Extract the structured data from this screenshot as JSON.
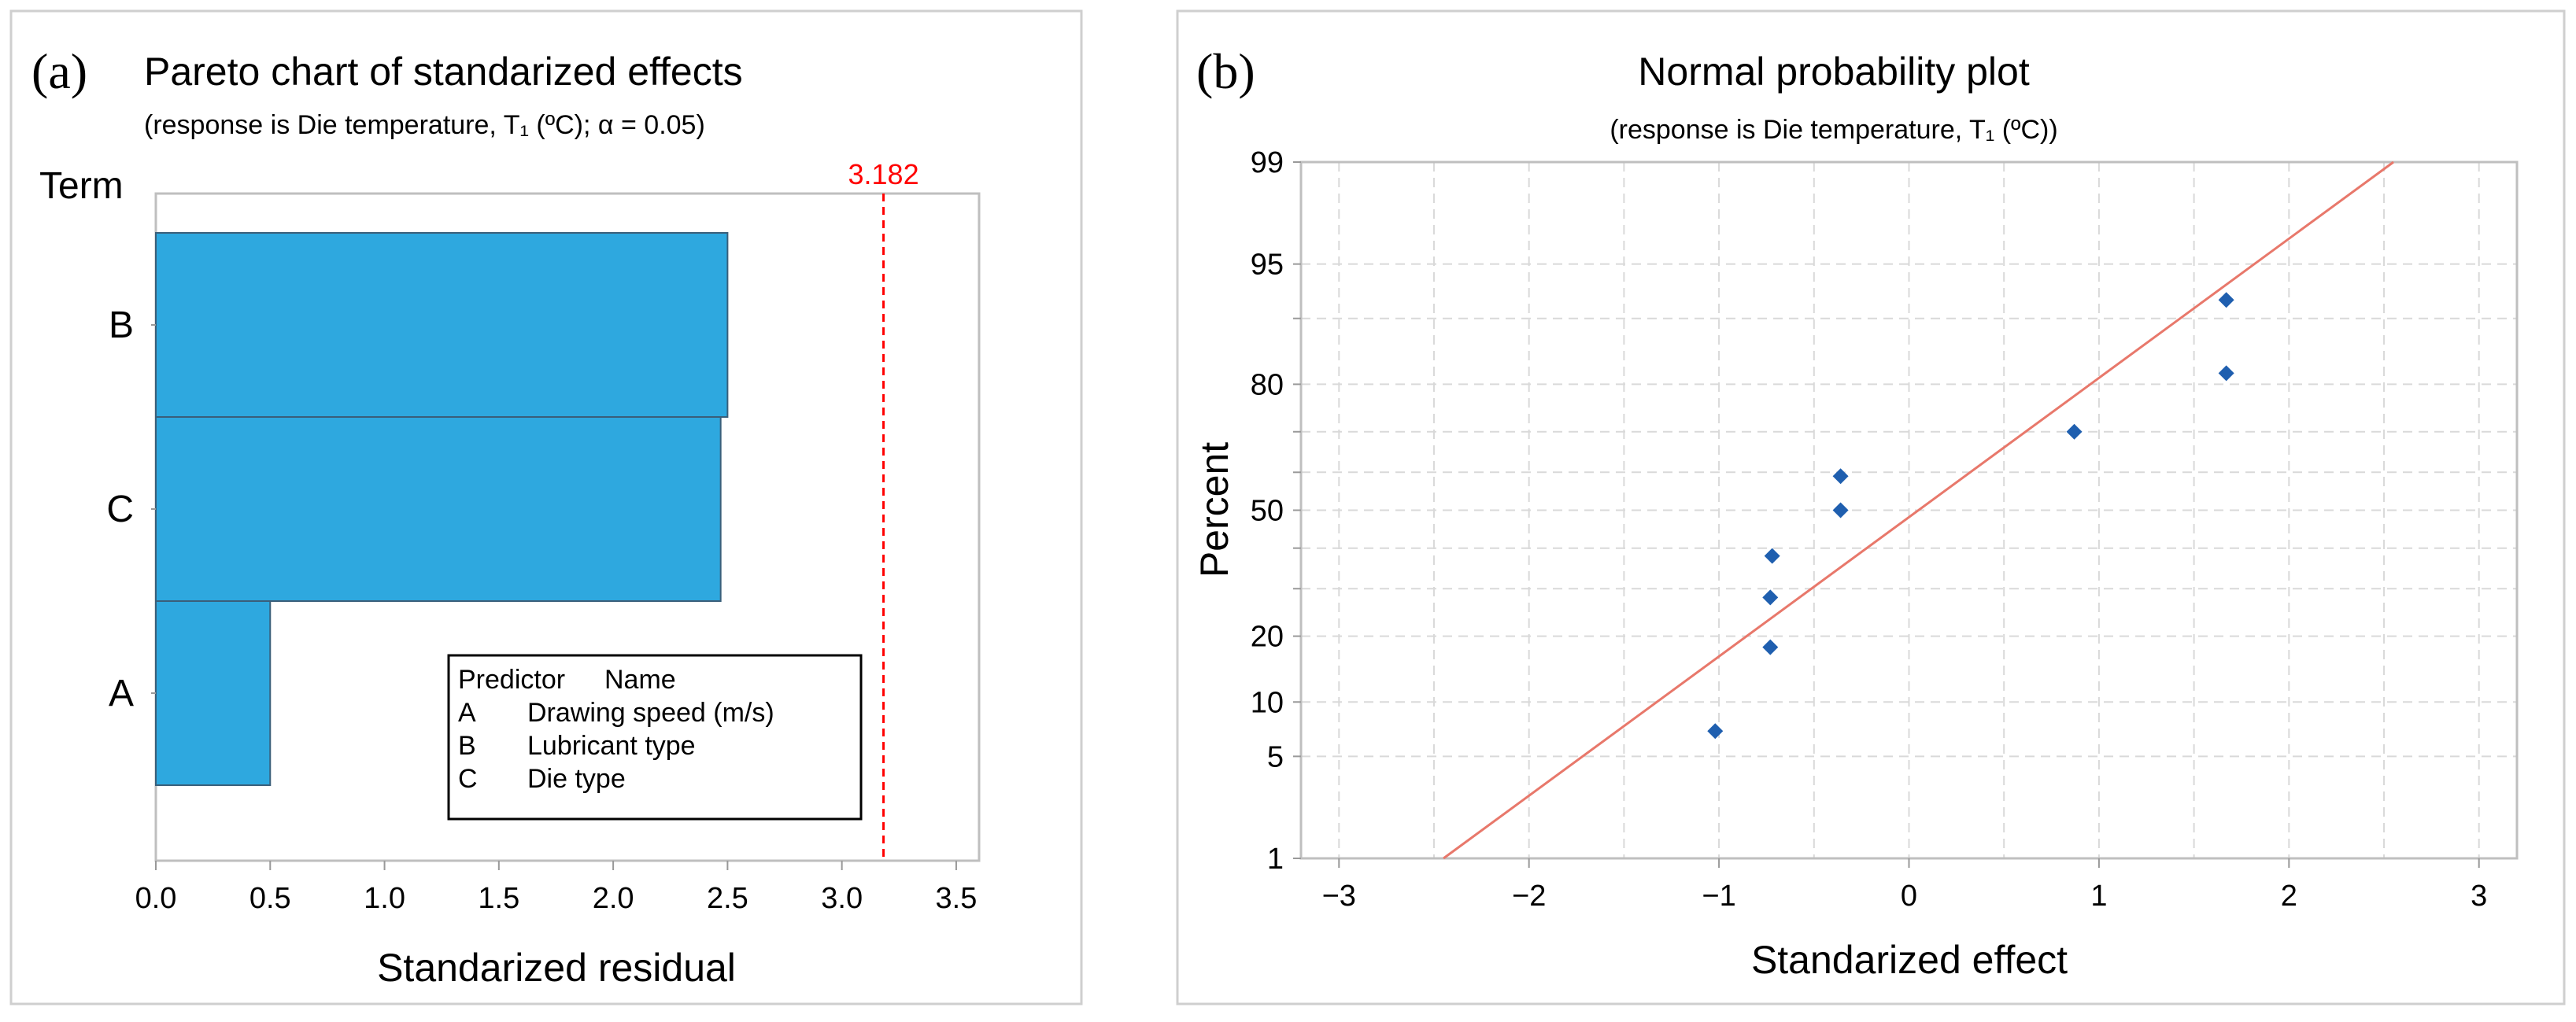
{
  "chart_data": [
    {
      "panel_label": "(a)",
      "type": "bar",
      "orientation": "horizontal",
      "title": "Pareto chart of standarized effects",
      "subtitle": "(response is Die temperature, T₁ (ºC); α = 0.05)",
      "xlabel": "Standarized residual",
      "ylabel": "Term",
      "xlim": [
        0,
        3.6
      ],
      "xticks": [
        0.0,
        0.5,
        1.0,
        1.5,
        2.0,
        2.5,
        3.0,
        3.5
      ],
      "xtick_labels": [
        "0.0",
        "0.5",
        "1.0",
        "1.5",
        "2.0",
        "2.5",
        "3.0",
        "3.5"
      ],
      "categories": [
        "B",
        "C",
        "A"
      ],
      "values": [
        2.5,
        2.47,
        0.5
      ],
      "bar_color": "#2EA8DF",
      "bar_edge_color": "#3A5F7A",
      "reference_line": {
        "value": 3.182,
        "label": "3.182",
        "color": "#FF0000",
        "style": "dashed"
      },
      "legend": {
        "placement": "bottom-right",
        "header": [
          "Predictor",
          "Name"
        ],
        "rows": [
          {
            "key": "A",
            "name": "Drawing speed (m/s)"
          },
          {
            "key": "B",
            "name": "Lubricant type"
          },
          {
            "key": "C",
            "name": "Die type"
          }
        ]
      },
      "grid": false
    },
    {
      "panel_label": "(b)",
      "type": "scatter",
      "title": "Normal probability plot",
      "subtitle": "(response is Die temperature, T₁ (ºC))",
      "xlabel": "Standarized effect",
      "ylabel": "Percent",
      "xlim": [
        -3.2,
        3.2
      ],
      "xticks": [
        -3,
        -2,
        -1,
        0,
        1,
        2,
        3
      ],
      "xtick_labels": [
        "−3",
        "−2",
        "−1",
        "0",
        "1",
        "2",
        "3"
      ],
      "ylim_percent": [
        1,
        99
      ],
      "yticks": [
        1,
        5,
        10,
        20,
        50,
        80,
        95,
        99
      ],
      "ytick_labels": [
        "1",
        "5",
        "10",
        "20",
        "50",
        "80",
        "95",
        "99"
      ],
      "minor_yticks": [
        30,
        40,
        60,
        70,
        90
      ],
      "points": [
        {
          "x": -1.02,
          "y": 7
        },
        {
          "x": -0.73,
          "y": 18
        },
        {
          "x": -0.73,
          "y": 28
        },
        {
          "x": -0.72,
          "y": 38
        },
        {
          "x": -0.36,
          "y": 50
        },
        {
          "x": -0.36,
          "y": 59
        },
        {
          "x": 0.87,
          "y": 70
        },
        {
          "x": 1.67,
          "y": 82
        },
        {
          "x": 1.67,
          "y": 92
        }
      ],
      "fit_line": {
        "x_start": -2.45,
        "y_start": 1,
        "x_end": 2.55,
        "y_end": 99,
        "color": "#E8786B"
      },
      "point_color": "#1F5FAF",
      "grid": true,
      "grid_color": "#D9D9D9"
    }
  ]
}
